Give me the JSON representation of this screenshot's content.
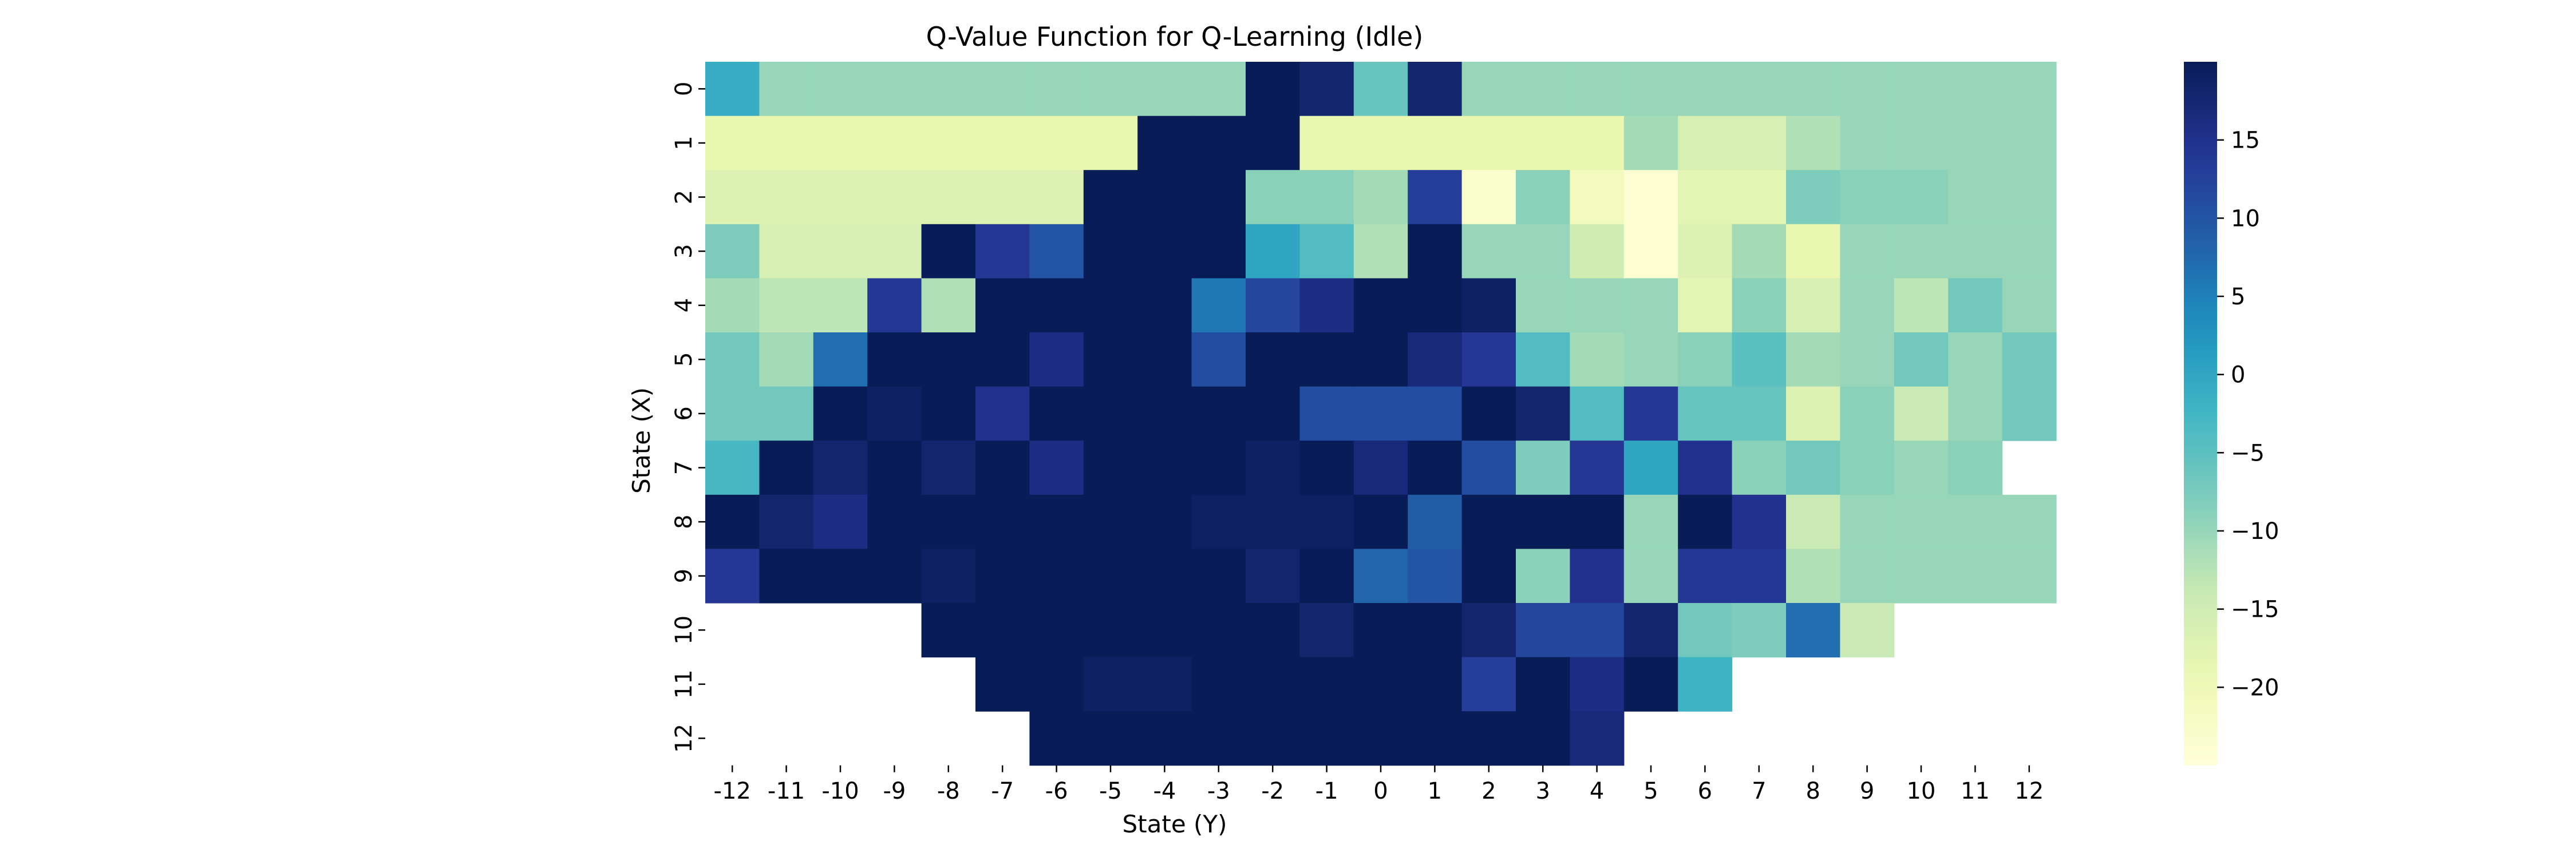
{
  "chart_data": {
    "type": "heatmap",
    "title": "Q-Value Function for Q-Learning (Idle)",
    "xlabel": "State (Y)",
    "ylabel": "State (X)",
    "x_categories": [
      "-12",
      "-11",
      "-10",
      "-9",
      "-8",
      "-7",
      "-6",
      "-5",
      "-4",
      "-3",
      "-2",
      "-1",
      "0",
      "1",
      "2",
      "3",
      "4",
      "5",
      "6",
      "7",
      "8",
      "9",
      "10",
      "11",
      "12"
    ],
    "y_categories": [
      "0",
      "1",
      "2",
      "3",
      "4",
      "5",
      "6",
      "7",
      "8",
      "9",
      "10",
      "11",
      "12"
    ],
    "colormap": "YlGnBu",
    "vmin": -25,
    "vmax": 20,
    "colorbar_ticks": [
      15,
      10,
      5,
      0,
      -5,
      -10,
      -15,
      -20
    ],
    "values": [
      [
        -1,
        -10,
        -10,
        -10,
        -10,
        -10,
        -10,
        -10,
        -10,
        -10,
        20,
        18,
        -6,
        18,
        -10,
        -10,
        -10,
        -10,
        -10,
        -10,
        -10,
        -10,
        -10,
        -10,
        -10
      ],
      [
        -19,
        -19,
        -19,
        -19,
        -19,
        -19,
        -19,
        -19,
        20,
        20,
        20,
        -19,
        -19,
        -19,
        -19,
        -19,
        -19,
        -11,
        -16,
        -16,
        -12,
        -10,
        -10,
        -10,
        -10
      ],
      [
        -17,
        -17,
        -17,
        -17,
        -17,
        -17,
        -17,
        20,
        20,
        20,
        -9,
        -9,
        -11,
        13,
        -23,
        -9,
        -21,
        -24,
        -18,
        -18,
        -8,
        -9,
        -9,
        -10,
        -10
      ],
      [
        -8,
        -16,
        -16,
        -16,
        20,
        14,
        10,
        20,
        20,
        20,
        0,
        -4,
        -12,
        20,
        -10,
        -10,
        -15,
        -24,
        -17,
        -11,
        -19,
        -10,
        -10,
        -10,
        -10
      ],
      [
        -11,
        -13,
        -13,
        14,
        -12,
        20,
        20,
        20,
        20,
        6,
        12,
        16,
        20,
        20,
        19,
        -10,
        -10,
        -10,
        -18,
        -9,
        -16,
        -10,
        -13,
        -7,
        -10
      ],
      [
        -7,
        -11,
        7,
        20,
        20,
        20,
        16,
        20,
        20,
        11,
        20,
        20,
        20,
        17,
        14,
        -4,
        -11,
        -10,
        -9,
        -5,
        -11,
        -10,
        -7,
        -10,
        -7
      ],
      [
        -7,
        -7,
        20,
        19,
        20,
        15,
        20,
        20,
        20,
        20,
        20,
        11,
        11,
        11,
        20,
        18,
        -4,
        14,
        -6,
        -6,
        -17,
        -9,
        -14,
        -10,
        -7
      ],
      [
        -3,
        20,
        18,
        20,
        18,
        20,
        16,
        20,
        20,
        20,
        19,
        20,
        17,
        20,
        11,
        -8,
        14,
        0,
        15,
        -9,
        -7,
        -9,
        -10,
        -9,
        null
      ],
      [
        20,
        18,
        16,
        20,
        20,
        20,
        20,
        20,
        20,
        19,
        19,
        19,
        20,
        9,
        20,
        20,
        20,
        -10,
        20,
        15,
        -14,
        -10,
        -10,
        -10,
        -10
      ],
      [
        14,
        20,
        20,
        20,
        19,
        20,
        20,
        20,
        20,
        20,
        18,
        20,
        8,
        10,
        20,
        -9,
        15,
        -10,
        14,
        14,
        -12,
        -10,
        -10,
        -10,
        -10
      ],
      [
        null,
        null,
        null,
        null,
        20,
        20,
        20,
        20,
        20,
        20,
        20,
        18,
        20,
        20,
        18,
        12,
        12,
        18,
        -7,
        -8,
        7,
        -14,
        null,
        null,
        null
      ],
      [
        null,
        null,
        null,
        null,
        null,
        20,
        20,
        19,
        19,
        20,
        20,
        20,
        20,
        20,
        13,
        20,
        16,
        20,
        -2,
        null,
        null,
        null,
        null,
        null,
        null
      ],
      [
        null,
        null,
        null,
        null,
        null,
        null,
        20,
        20,
        20,
        20,
        20,
        20,
        20,
        20,
        20,
        20,
        17,
        null,
        null,
        null,
        null,
        null,
        null,
        null,
        null
      ]
    ]
  }
}
